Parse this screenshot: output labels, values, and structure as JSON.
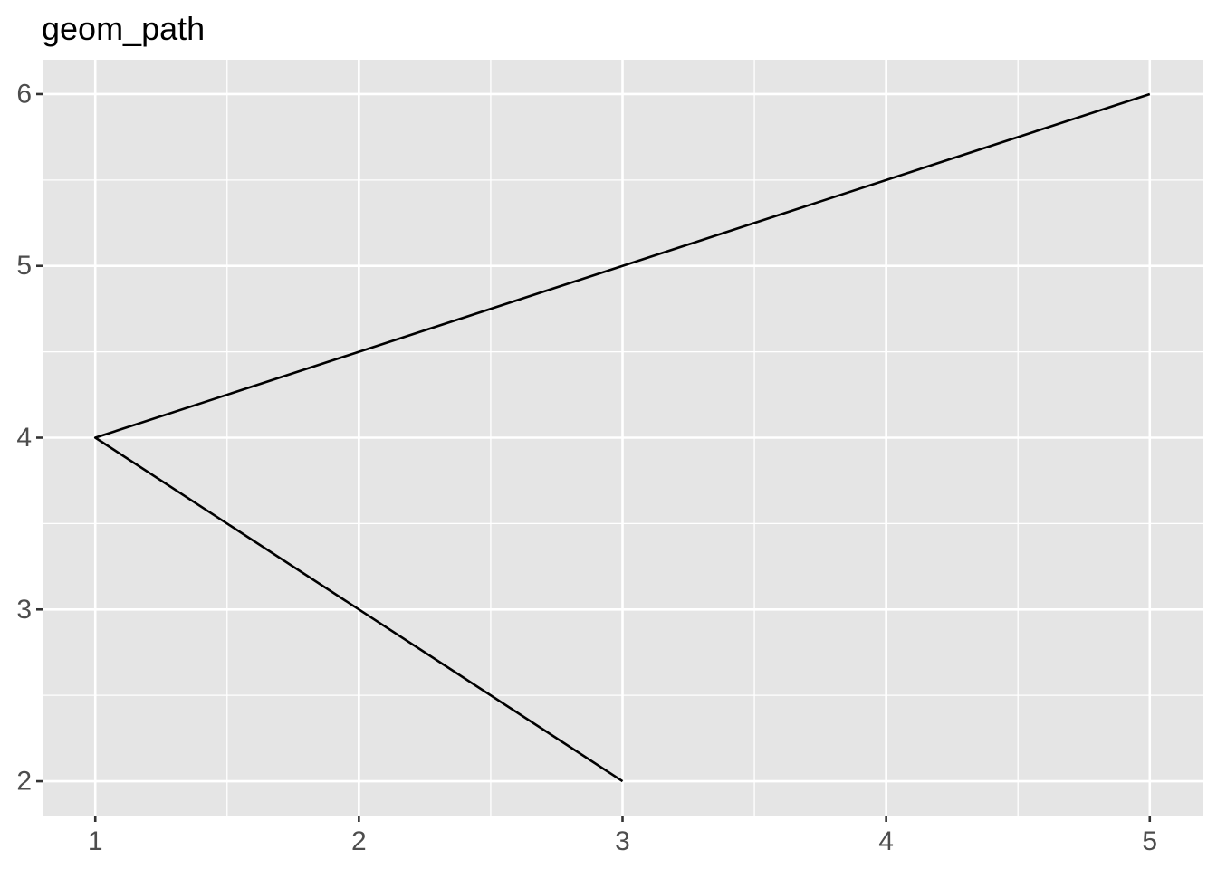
{
  "chart_data": {
    "type": "line",
    "geom": "path",
    "title": "geom_path",
    "xlabel": "",
    "ylabel": "",
    "xlim": [
      0.8,
      5.2
    ],
    "ylim": [
      1.8,
      6.2
    ],
    "x_ticks": [
      1,
      2,
      3,
      4,
      5
    ],
    "y_ticks": [
      2,
      3,
      4,
      5,
      6
    ],
    "x_minor": [
      1.5,
      2.5,
      3.5,
      4.5
    ],
    "y_minor": [
      2.5,
      3.5,
      4.5,
      5.5
    ],
    "x_tick_labels": [
      "1",
      "2",
      "3",
      "4",
      "5"
    ],
    "y_tick_labels": [
      "2",
      "3",
      "4",
      "5",
      "6"
    ],
    "grid": true,
    "legend": "none",
    "series": [
      {
        "name": "path",
        "color": "#000000",
        "points": [
          {
            "x": 3,
            "y": 2
          },
          {
            "x": 1,
            "y": 4
          },
          {
            "x": 5,
            "y": 6
          }
        ]
      }
    ],
    "colors": {
      "panel_background": "#e5e5e5",
      "grid": "#ffffff",
      "axis_text": "#4d4d4d",
      "tick": "#333333",
      "title": "#000000"
    }
  }
}
